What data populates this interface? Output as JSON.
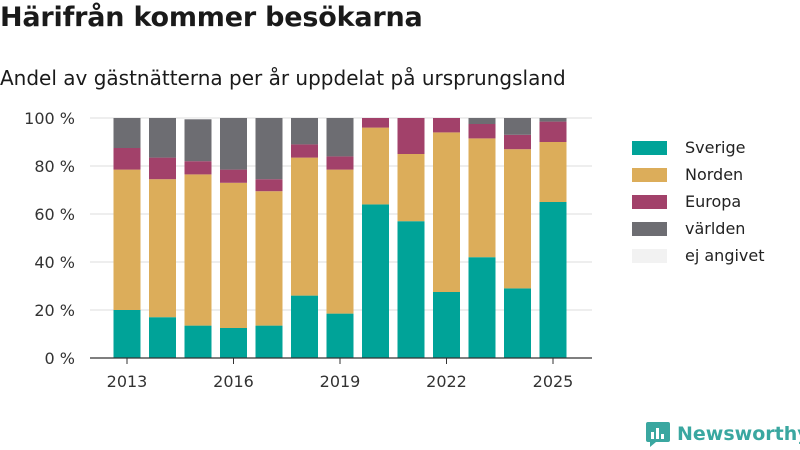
{
  "header": {
    "title": "Härifrån kommer besökarna",
    "subtitle": "Andel av gästnätterna per år uppdelat på ursprungsland"
  },
  "brand": {
    "name": "Newsworthy",
    "logo_icon": "bar-chart-logo-icon",
    "color": "#3aa7a0"
  },
  "colors": {
    "Sverige": "#00a398",
    "Norden": "#dcad5a",
    "Europa": "#a2416a",
    "världen": "#6d6d72",
    "ej angivet": "#f2f2f2"
  },
  "chart_data": {
    "type": "bar",
    "stacked": true,
    "x": [
      2013,
      2014,
      2015,
      2016,
      2017,
      2018,
      2019,
      2020,
      2021,
      2022,
      2023,
      2024,
      2025
    ],
    "xticks": [
      "2013",
      "2016",
      "2019",
      "2022",
      "2025"
    ],
    "yticks": [
      "0 %",
      "20 %",
      "40 %",
      "60 %",
      "80 %",
      "100 %"
    ],
    "ylim": [
      0,
      100
    ],
    "unit": "%",
    "grid": "horizontal",
    "legend_position": "right",
    "series": [
      {
        "name": "Sverige",
        "values": [
          20,
          17,
          13.5,
          12.5,
          13.5,
          26,
          18.5,
          64,
          57,
          27.5,
          42,
          29,
          65
        ]
      },
      {
        "name": "Norden",
        "values": [
          58.5,
          57.5,
          63,
          60.5,
          56,
          57.5,
          60,
          32,
          28,
          66.5,
          49.5,
          58,
          25
        ]
      },
      {
        "name": "Europa",
        "values": [
          9,
          9,
          5.5,
          5.5,
          5,
          5.5,
          5.5,
          4,
          15,
          6,
          6,
          6,
          8.5
        ]
      },
      {
        "name": "världen",
        "values": [
          12.5,
          16.5,
          17.5,
          21.5,
          25.5,
          11,
          16,
          0,
          0,
          0,
          2.5,
          7,
          1.5
        ]
      },
      {
        "name": "ej angivet",
        "values": [
          0,
          0,
          0.5,
          0,
          0,
          0,
          0,
          0,
          0,
          0,
          0,
          0,
          0
        ]
      }
    ]
  }
}
